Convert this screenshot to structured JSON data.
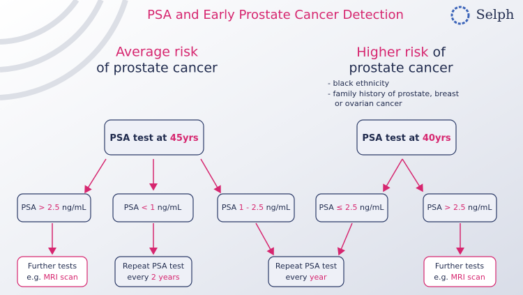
{
  "title": "PSA and Early Prostate Cancer Detection",
  "logo": "Selph",
  "left": {
    "heading": [
      "Average risk",
      "of prostate cancer"
    ]
  },
  "right": {
    "heading": [
      "Higher risk",
      " of",
      "prostate cancer"
    ],
    "criteria": [
      "- black ethnicity",
      "- family history of prostate, breast",
      "or ovarian cancer"
    ]
  },
  "nodes": [
    {
      "parts": [
        "PSA test at ",
        "45yrs"
      ]
    },
    {
      "parts": [
        "PSA test at ",
        "40yrs"
      ]
    },
    {
      "parts": [
        "PSA ",
        "> 2.5",
        " ng/mL"
      ]
    },
    {
      "parts": [
        "PSA ",
        "< 1",
        " ng/mL"
      ]
    },
    {
      "parts": [
        "PSA ",
        "1 - 2.5",
        " ng/mL"
      ]
    },
    {
      "parts": [
        "PSA ",
        "≤ 2.5",
        " ng/mL"
      ]
    },
    {
      "parts": [
        "PSA ",
        "> 2.5",
        " ng/mL"
      ]
    },
    {
      "parts": [
        "Further tests",
        "e.g. ",
        "MRI scan"
      ]
    },
    {
      "parts": [
        "Repeat PSA test",
        "every ",
        "2 years"
      ]
    },
    {
      "parts": [
        "Repeat PSA test",
        "every ",
        "year"
      ]
    },
    {
      "parts": [
        "Further tests",
        "e.g. ",
        "MRI scan"
      ]
    }
  ]
}
